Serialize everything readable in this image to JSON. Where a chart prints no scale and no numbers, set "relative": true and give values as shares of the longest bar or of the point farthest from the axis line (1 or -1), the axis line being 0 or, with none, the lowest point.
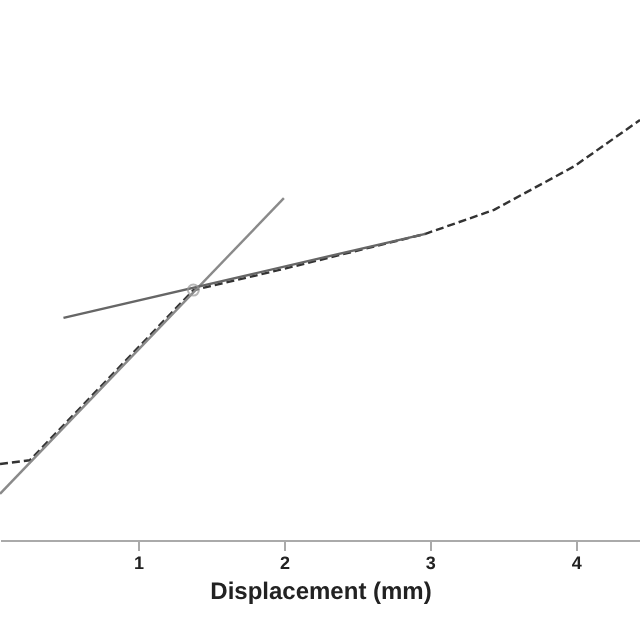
{
  "chart_data": {
    "type": "line",
    "xlabel": "Displacement (mm)",
    "relative": true,
    "xlim": [
      0.055,
      4.44
    ],
    "xticks": [
      1,
      2,
      3,
      4
    ],
    "grid": false,
    "series": [
      {
        "color": "#333333",
        "line_style": "dashed",
        "x": [
          0.055,
          0.26,
          1.38,
          1.97,
          2.97,
          3.44,
          3.99,
          4.44
        ],
        "values": [
          0.181,
          0.19,
          0.595,
          0.643,
          0.729,
          0.786,
          0.89,
          1
        ]
      },
      {
        "color": "#8a8a8a",
        "line_style": "solid",
        "x": [
          0.055,
          2.0
        ],
        "values": [
          0.11,
          0.814
        ]
      },
      {
        "color": "#666666",
        "line_style": "solid",
        "x": [
          0.49,
          2.97
        ],
        "values": [
          0.529,
          0.729
        ]
      },
      {
        "type": "scatter",
        "marker": "circle",
        "color": "#999999",
        "x": [
          1.38
        ],
        "values": [
          0.595
        ]
      }
    ]
  }
}
